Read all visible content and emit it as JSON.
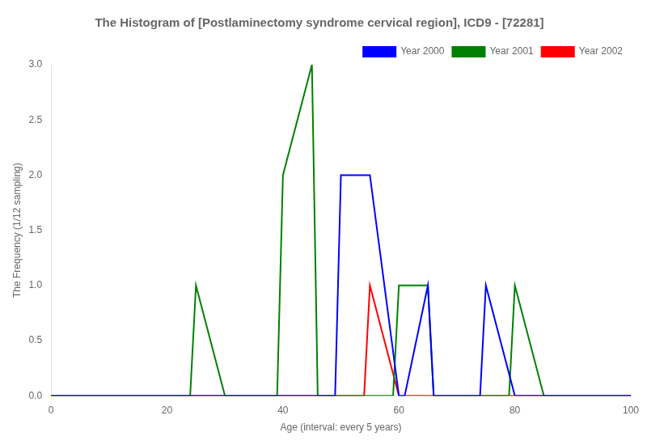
{
  "chart_data": {
    "type": "line",
    "title": "The Histogram of [Postlaminectomy syndrome cervical region], ICD9 - [72281]",
    "xlabel": "Age (interval: every 5 years)",
    "ylabel": "The Frequency (1/12 sampling)",
    "xlim": [
      0,
      100
    ],
    "ylim": [
      0,
      3.0
    ],
    "xticks": [
      0,
      20,
      40,
      60,
      80,
      100
    ],
    "yticks": [
      {
        "value": 0.0,
        "label": "0.0"
      },
      0.5,
      {
        "value": 1.0,
        "label": "1.0"
      },
      1.5,
      {
        "value": 2.0,
        "label": "2.0"
      },
      2.5,
      {
        "value": 3.0,
        "label": "3.0"
      }
    ],
    "series": [
      {
        "name": "Year 2000",
        "color": "blue",
        "x": [
          0,
          49,
          50,
          55,
          60,
          61,
          65,
          66,
          70,
          74,
          75,
          80,
          81,
          100
        ],
        "values": [
          0,
          0,
          2,
          2,
          0,
          0,
          1,
          0,
          0,
          0,
          1,
          0,
          0,
          0
        ]
      },
      {
        "name": "Year 2001",
        "color": "green",
        "x": [
          0,
          24,
          25,
          30,
          31,
          39,
          40,
          45,
          46,
          59,
          60,
          65,
          66,
          79,
          80,
          85,
          100
        ],
        "values": [
          0,
          0,
          1,
          0,
          0,
          0,
          2,
          3,
          0,
          0,
          1,
          1,
          0,
          0,
          1,
          0,
          0
        ]
      },
      {
        "name": "Year 2002",
        "color": "red",
        "x": [
          0,
          54,
          55,
          60,
          61,
          100
        ],
        "values": [
          0,
          0,
          1,
          0,
          0,
          0
        ]
      }
    ],
    "legend": "upper right",
    "grid": false
  }
}
